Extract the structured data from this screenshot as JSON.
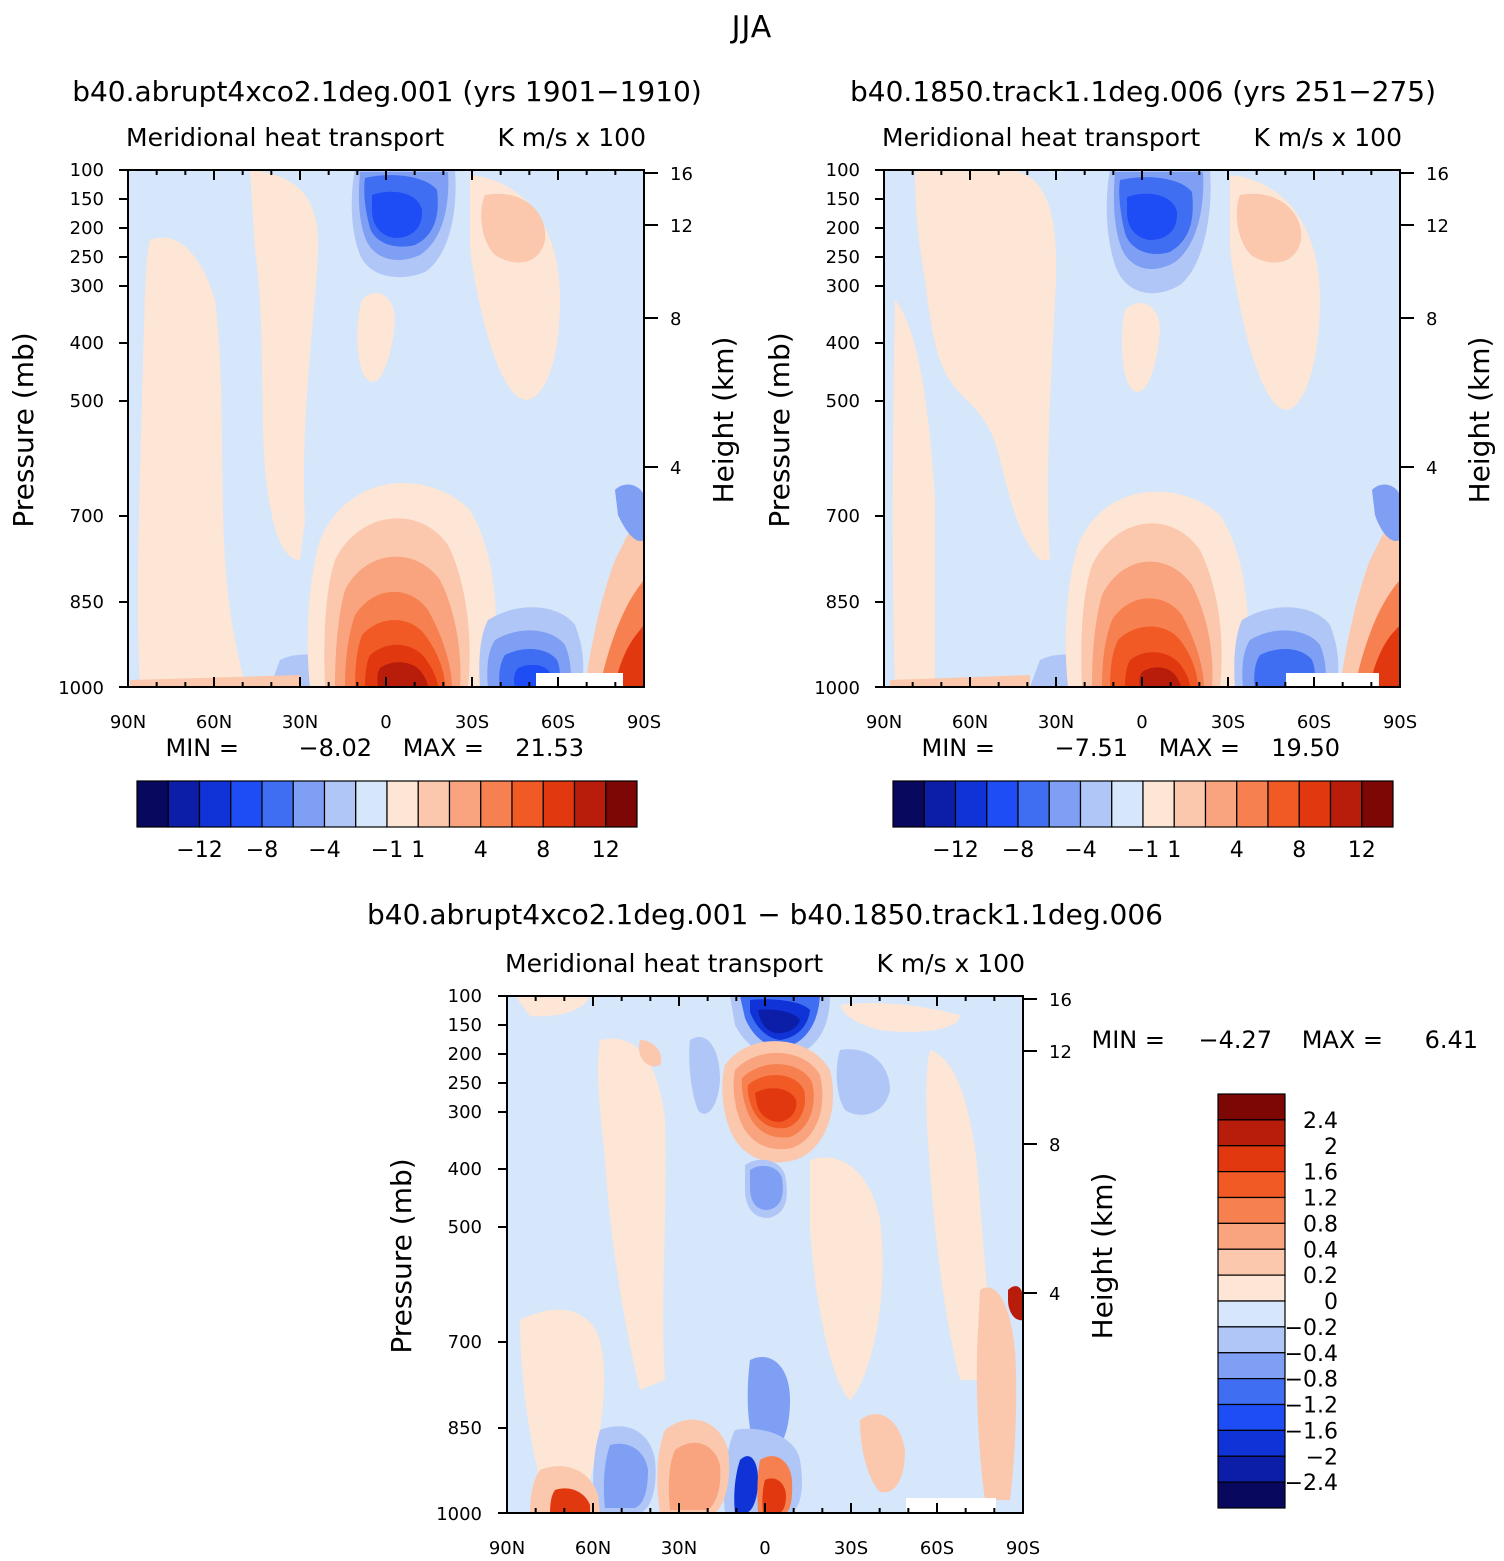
{
  "figure_title": "JJA",
  "panels": [
    {
      "title": "b40.abrupt4xco2.1deg.001 (yrs 1901−1910)",
      "subtitle_left": "Meridional heat transport",
      "subtitle_right": "K m/s x 100",
      "ylabel": "Pressure (mb)",
      "ylabel_right": "Height (km)",
      "min_label": "MIN =",
      "min_value": "−8.02",
      "max_label": "MAX =",
      "max_value": "21.53"
    },
    {
      "title": "b40.1850.track1.1deg.006 (yrs 251−275)",
      "subtitle_left": "Meridional heat transport",
      "subtitle_right": "K m/s x 100",
      "ylabel": "Pressure (mb)",
      "ylabel_right": "Height (km)",
      "min_label": "MIN =",
      "min_value": "−7.51",
      "max_label": "MAX =",
      "max_value": "19.50"
    },
    {
      "title": "b40.abrupt4xco2.1deg.001 − b40.1850.track1.1deg.006",
      "subtitle_left": "Meridional heat transport",
      "subtitle_right": "K m/s x 100",
      "ylabel": "Pressure (mb)",
      "ylabel_right": "Height (km)",
      "min_label": "MIN =",
      "min_value": "−4.27",
      "max_label": "MAX =",
      "max_value": "6.41"
    }
  ],
  "axes": {
    "x_ticks": [
      "90N",
      "60N",
      "30N",
      "0",
      "30S",
      "60S",
      "90S"
    ],
    "y_ticks": [
      "100",
      "150",
      "200",
      "250",
      "300",
      "400",
      "500",
      "700",
      "850",
      "1000"
    ],
    "height_ticks": [
      "16",
      "12",
      "8",
      "4"
    ]
  },
  "colorbar_top": {
    "labels": [
      "−12",
      "−8",
      "−4",
      "−1",
      "1",
      "4",
      "8",
      "12"
    ],
    "colors": [
      "#08085e",
      "#0c1ea8",
      "#0f33d6",
      "#1e4cf5",
      "#3f6ef2",
      "#7f9ff5",
      "#b0c6f7",
      "#d6e6fb",
      "#fde6d5",
      "#fbc8ae",
      "#f9a47f",
      "#f6804f",
      "#f25a25",
      "#e2380f",
      "#b81c0a",
      "#7c0704"
    ]
  },
  "colorbar_diff": {
    "labels": [
      "2.4",
      "2",
      "1.6",
      "1.2",
      "0.8",
      "0.4",
      "0.2",
      "0",
      "−0.2",
      "−0.4",
      "−0.8",
      "−1.2",
      "−1.6",
      "−2",
      "−2.4"
    ],
    "colors": [
      "#7c0704",
      "#b81c0a",
      "#e2380f",
      "#f25a25",
      "#f6804f",
      "#f9a47f",
      "#fbc8ae",
      "#fde6d5",
      "#d6e6fb",
      "#b0c6f7",
      "#7f9ff5",
      "#3f6ef2",
      "#1e4cf5",
      "#0f33d6",
      "#0c1ea8",
      "#08085e"
    ]
  },
  "chart_data": [
    {
      "type": "heatmap",
      "title": "b40.abrupt4xco2.1deg.001 (yrs 1901−1910)",
      "variable": "Meridional heat transport",
      "units": "K m/s x 100",
      "xlabel": "",
      "ylabel": "Pressure (mb)",
      "ylabel_right": "Height (km)",
      "x_range": [
        "90N",
        "90S"
      ],
      "y_range_mb": [
        100,
        1000
      ],
      "y_scale": "log",
      "min": -8.02,
      "max": 21.53,
      "features": [
        {
          "lat": "5N",
          "p_mb": 200,
          "value": -8
        },
        {
          "lat": "35S",
          "p_mb": 200,
          "value": 0.5
        },
        {
          "lat": "5S",
          "p_mb": 970,
          "value": 21.53
        },
        {
          "lat": "52S",
          "p_mb": 960,
          "value": -6
        },
        {
          "lat": "85S",
          "p_mb": 900,
          "value": 6
        }
      ]
    },
    {
      "type": "heatmap",
      "title": "b40.1850.track1.1deg.006 (yrs 251−275)",
      "variable": "Meridional heat transport",
      "units": "K m/s x 100",
      "xlabel": "",
      "ylabel": "Pressure (mb)",
      "ylabel_right": "Height (km)",
      "x_range": [
        "90N",
        "90S"
      ],
      "y_range_mb": [
        100,
        1000
      ],
      "y_scale": "log",
      "min": -7.51,
      "max": 19.5,
      "features": [
        {
          "lat": "5N",
          "p_mb": 200,
          "value": -7.5
        },
        {
          "lat": "35S",
          "p_mb": 200,
          "value": 0.5
        },
        {
          "lat": "5S",
          "p_mb": 970,
          "value": 19.5
        },
        {
          "lat": "52S",
          "p_mb": 960,
          "value": -6
        },
        {
          "lat": "85S",
          "p_mb": 900,
          "value": 6
        }
      ]
    },
    {
      "type": "heatmap",
      "title": "b40.abrupt4xco2.1deg.001 − b40.1850.track1.1deg.006",
      "variable": "Meridional heat transport",
      "units": "K m/s x 100",
      "xlabel": "",
      "ylabel": "Pressure (mb)",
      "ylabel_right": "Height (km)",
      "x_range": [
        "90N",
        "90S"
      ],
      "y_range_mb": [
        100,
        1000
      ],
      "y_scale": "log",
      "min": -4.27,
      "max": 6.41,
      "features": [
        {
          "lat": "0",
          "p_mb": 150,
          "value": -4.27
        },
        {
          "lat": "0",
          "p_mb": 300,
          "value": 6.41
        },
        {
          "lat": "0",
          "p_mb": 430,
          "value": -0.8
        },
        {
          "lat": "8N",
          "p_mb": 970,
          "value": -2
        },
        {
          "lat": "0",
          "p_mb": 970,
          "value": 1.6
        },
        {
          "lat": "90S",
          "p_mb": 620,
          "value": 2.4
        }
      ]
    }
  ]
}
